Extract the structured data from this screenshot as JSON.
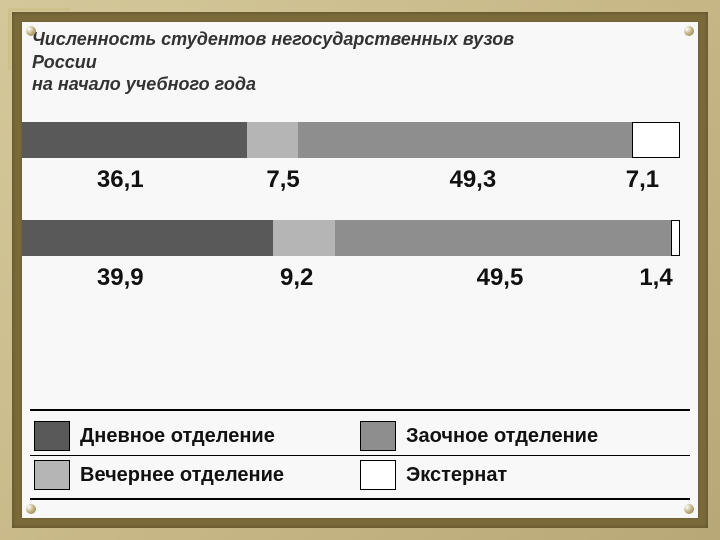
{
  "title": {
    "line1": "Численность студентов негосударственных вузов",
    "line2": "России",
    "line3": "на начало учебного года",
    "fontsize": 18,
    "color": "#333333"
  },
  "chart": {
    "type": "stacked_bar_horizontal",
    "colors": {
      "day": "#595959",
      "evening": "#b5b5b5",
      "distance": "#8e8e8e",
      "external": "#ffffff",
      "border": "#000000"
    },
    "bars": [
      {
        "segments": [
          {
            "kind": "day",
            "value": 36.1
          },
          {
            "kind": "evening",
            "value": 7.5
          },
          {
            "kind": "distance",
            "value": 49.3
          },
          {
            "kind": "external",
            "value": 7.1
          }
        ],
        "labels": [
          {
            "text": "36,1",
            "left_pct": 14
          },
          {
            "text": "7,5",
            "left_pct": 39
          },
          {
            "text": "49,3",
            "left_pct": 66
          },
          {
            "text": "7,1",
            "left_pct": 92
          }
        ],
        "label_fontsize": 24
      },
      {
        "segments": [
          {
            "kind": "day",
            "value": 39.9
          },
          {
            "kind": "evening",
            "value": 9.2
          },
          {
            "kind": "distance",
            "value": 49.5
          },
          {
            "kind": "external",
            "value": 1.4
          }
        ],
        "labels": [
          {
            "text": "39,9",
            "left_pct": 14
          },
          {
            "text": "9,2",
            "left_pct": 41
          },
          {
            "text": "49,5",
            "left_pct": 70
          },
          {
            "text": "1,4",
            "left_pct": 94
          }
        ],
        "label_fontsize": 24
      }
    ]
  },
  "legend": {
    "fontsize": 20,
    "items": [
      {
        "kind": "day",
        "label": "Дневное отделение"
      },
      {
        "kind": "distance",
        "label": "Заочное отделение"
      },
      {
        "kind": "evening",
        "label": "Вечернее отделение"
      },
      {
        "kind": "external",
        "label": "Экстернат"
      }
    ]
  },
  "frame": {
    "outer_gradient": [
      "#d4c89a",
      "#b8a878"
    ],
    "mid_color": "#7a6a3a",
    "panel_color": "#f8f8f8"
  }
}
